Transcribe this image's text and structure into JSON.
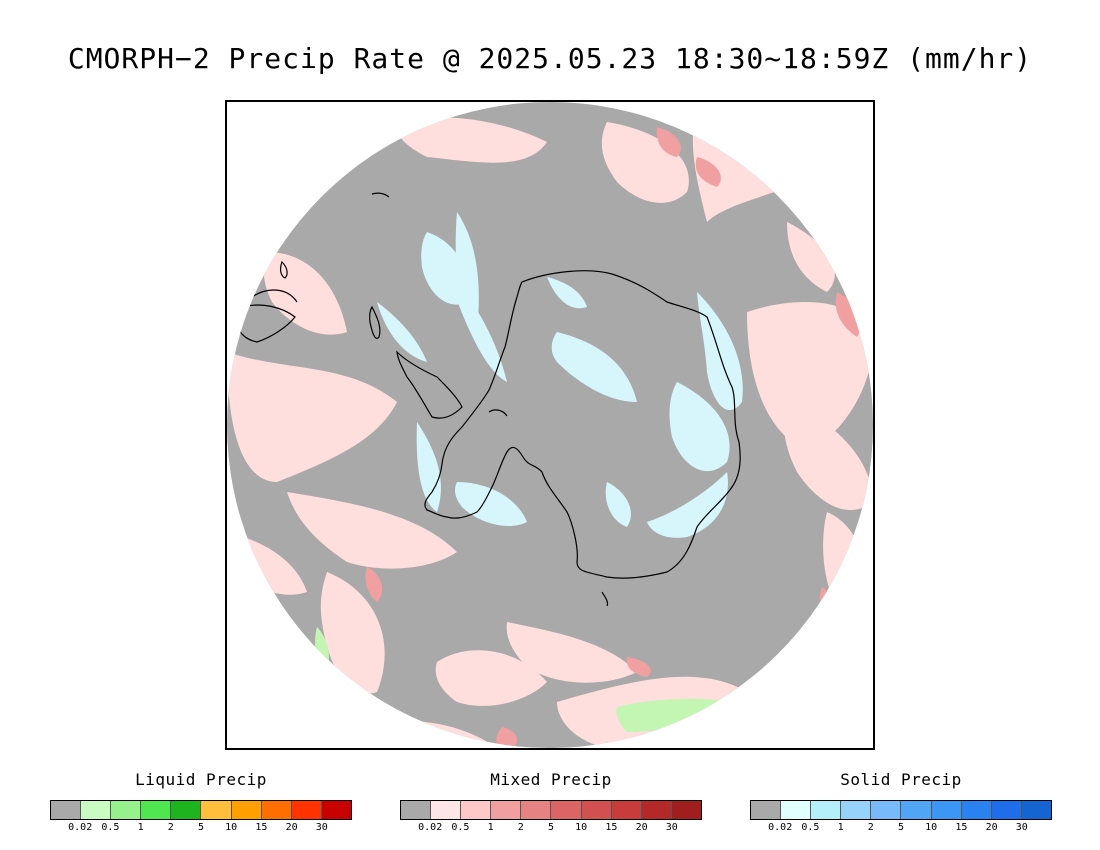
{
  "title": "CMORPH−2 Precip Rate @ 2025.05.23 18:30~18:59Z (mm/hr)",
  "map": {
    "region": "south-polar-stereographic",
    "colors": {
      "no_precip": "#a9a9a9",
      "mixed_light": "#ffdede",
      "mixed_medium": "#f0a0a0",
      "snow_light": "#d6f6fb",
      "rain_light": "#c3f5b3",
      "coastline": "#000000"
    }
  },
  "legends": [
    {
      "title": "Liquid Precip",
      "colors": [
        "#a9a9a9",
        "#c8fcc0",
        "#96f08c",
        "#50e650",
        "#1eb41e",
        "#ffbe3c",
        "#ffa000",
        "#ff6e00",
        "#ff3200",
        "#c80000"
      ],
      "labels": [
        "0.02",
        "0.5",
        "1",
        "2",
        "5",
        "10",
        "15",
        "20",
        "30"
      ]
    },
    {
      "title": "Mixed Precip",
      "colors": [
        "#a9a9a9",
        "#ffe6e6",
        "#ffc8c8",
        "#f0a0a0",
        "#e68282",
        "#dc6464",
        "#d25050",
        "#c83c3c",
        "#b42828",
        "#a01e1e"
      ],
      "labels": [
        "0.02",
        "0.5",
        "1",
        "2",
        "5",
        "10",
        "15",
        "20",
        "30"
      ]
    },
    {
      "title": "Solid Precip",
      "colors": [
        "#a9a9a9",
        "#e1ffff",
        "#b4f0fa",
        "#96d2fa",
        "#78b9fa",
        "#50a5f5",
        "#3c96f5",
        "#2882f0",
        "#1e6eeb",
        "#1464d2"
      ],
      "labels": [
        "0.02",
        "0.5",
        "1",
        "2",
        "5",
        "10",
        "15",
        "20",
        "30"
      ]
    }
  ]
}
